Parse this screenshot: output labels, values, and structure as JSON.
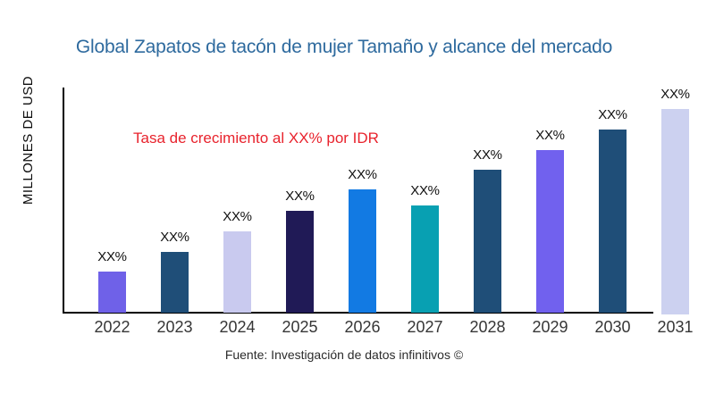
{
  "colors": {
    "background": "#ffffff",
    "title": "#2e6a9e",
    "annotation": "#e8232d",
    "axis": "#000000",
    "tick_text": "#363636",
    "value_label_text": "#101010"
  },
  "chart_data": {
    "type": "bar",
    "title": "Global Zapatos de tacón de mujer Tamaño y alcance del mercado",
    "ylabel": "MILLONES DE USD",
    "xlabel": "",
    "annotation": "Tasa de crecimiento al XX% por IDR",
    "source": "Fuente: Investigación de datos infinitivos ©",
    "categories": [
      "2022",
      "2023",
      "2024",
      "2025",
      "2026",
      "2027",
      "2028",
      "2029",
      "2030",
      "2031"
    ],
    "values": [
      20,
      30,
      40,
      50,
      60.5,
      52.5,
      70,
      80,
      90,
      100
    ],
    "value_labels": [
      "XX%",
      "XX%",
      "XX%",
      "XX%",
      "XX%",
      "XX%",
      "XX%",
      "XX%",
      "XX%",
      "XX%"
    ],
    "bar_colors": [
      "#6f61e8",
      "#1f4e78",
      "#c9caef",
      "#201a56",
      "#127ae3",
      "#08a0b2",
      "#1f4e78",
      "#7161ee",
      "#1f4e78",
      "#ccd1f0"
    ],
    "ylim": [
      0,
      105
    ],
    "grid": false,
    "legend": "none"
  }
}
